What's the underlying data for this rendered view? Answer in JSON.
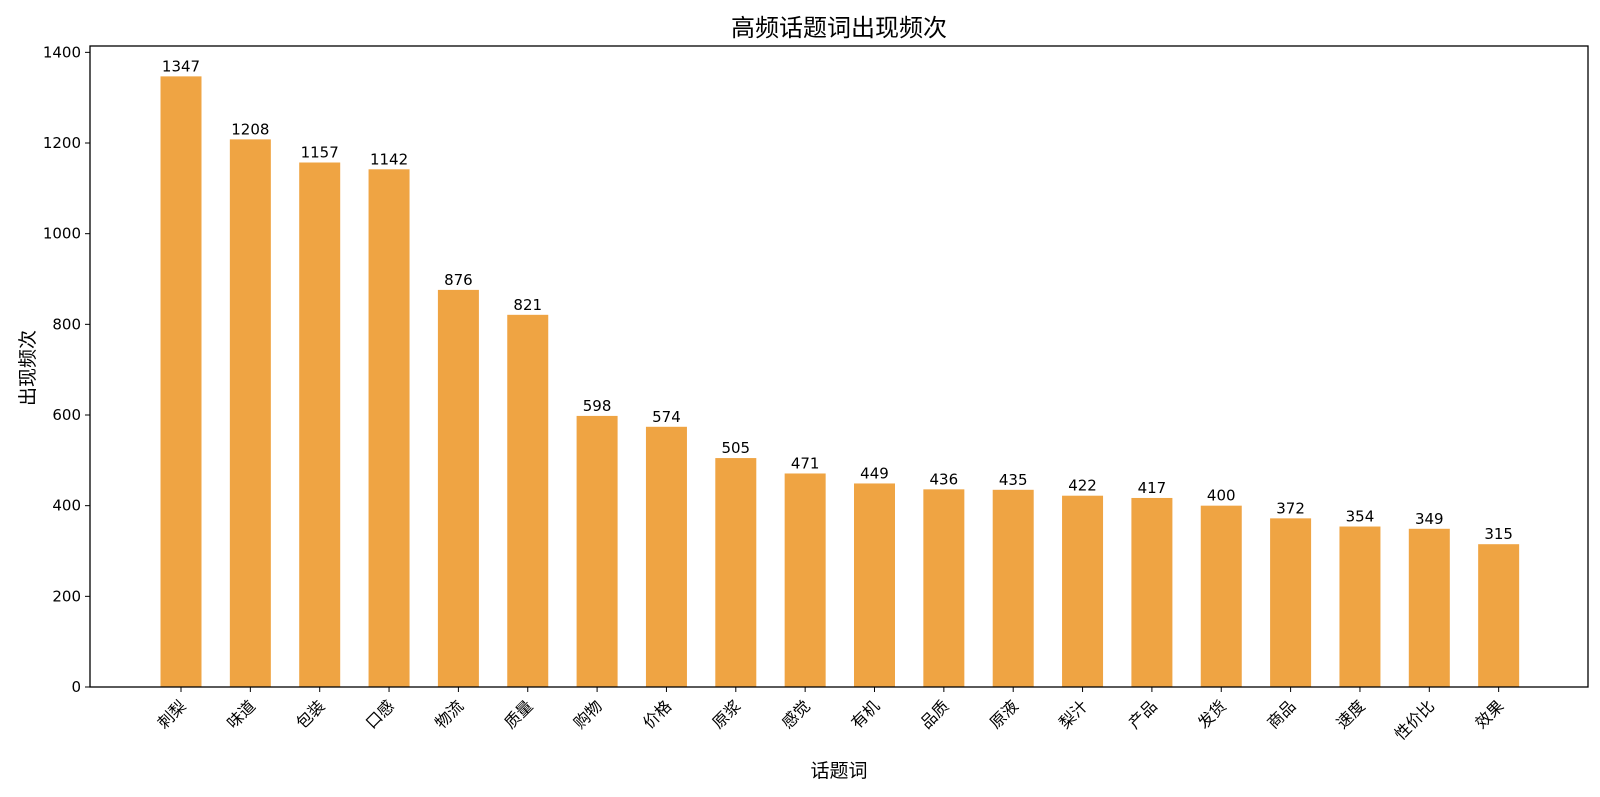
{
  "chart_data": {
    "type": "bar",
    "title": "高频话题词出现频次",
    "xlabel": "话题词",
    "ylabel": "出现频次",
    "categories": [
      "刺梨",
      "味道",
      "包装",
      "口感",
      "物流",
      "质量",
      "购物",
      "价格",
      "原浆",
      "感觉",
      "有机",
      "品质",
      "原液",
      "梨汁",
      "产品",
      "发货",
      "商品",
      "速度",
      "性价比",
      "效果"
    ],
    "values": [
      1347,
      1208,
      1157,
      1142,
      876,
      821,
      598,
      574,
      505,
      471,
      449,
      436,
      435,
      422,
      417,
      400,
      372,
      354,
      349,
      315
    ],
    "ylim": [
      0,
      1414
    ],
    "yticks": [
      0,
      200,
      400,
      600,
      800,
      1000,
      1200,
      1400
    ],
    "bar_color": "#EFA443",
    "grid": false,
    "legend": "none"
  }
}
